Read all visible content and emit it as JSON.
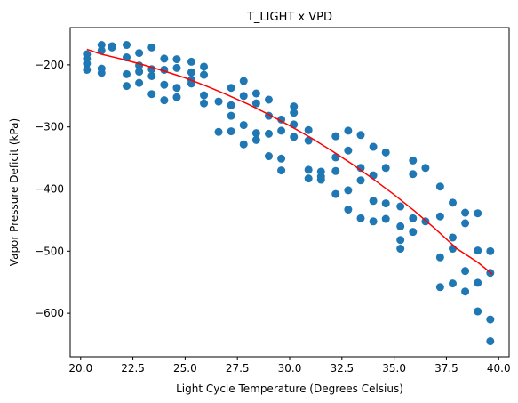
{
  "chart_data": {
    "type": "scatter",
    "title": "T_LIGHT x VPD",
    "xlabel": "Light Cycle Temperature (Degrees Celsius)",
    "ylabel": "Vapor Pressure Deficit (kPa)",
    "xlim": [
      19.5,
      40.5
    ],
    "ylim": [
      -670,
      -140
    ],
    "x_ticks": [
      {
        "value": 20.0,
        "label": "20.0"
      },
      {
        "value": 22.5,
        "label": "22.5"
      },
      {
        "value": 25.0,
        "label": "25.0"
      },
      {
        "value": 27.5,
        "label": "27.5"
      },
      {
        "value": 30.0,
        "label": "30.0"
      },
      {
        "value": 32.5,
        "label": "32.5"
      },
      {
        "value": 35.0,
        "label": "35.0"
      },
      {
        "value": 37.5,
        "label": "37.5"
      },
      {
        "value": 40.0,
        "label": "40.0"
      }
    ],
    "y_ticks": [
      {
        "value": -200,
        "label": "−200"
      },
      {
        "value": -300,
        "label": "−300"
      },
      {
        "value": -400,
        "label": "−400"
      },
      {
        "value": -500,
        "label": "−500"
      },
      {
        "value": -600,
        "label": "−600"
      }
    ],
    "grid": false,
    "point_color": "#1f77b4",
    "line_color": "#ff0000",
    "series": [
      {
        "type": "scatter",
        "points": [
          [
            20.3,
            -183
          ],
          [
            20.3,
            -190
          ],
          [
            20.3,
            -198
          ],
          [
            20.3,
            -208
          ],
          [
            21.0,
            -168
          ],
          [
            21.0,
            -177
          ],
          [
            21.0,
            -206
          ],
          [
            21.0,
            -213
          ],
          [
            21.5,
            -170
          ],
          [
            21.5,
            -172
          ],
          [
            22.2,
            -168
          ],
          [
            22.2,
            -188
          ],
          [
            22.2,
            -215
          ],
          [
            22.2,
            -234
          ],
          [
            22.8,
            -181
          ],
          [
            22.8,
            -201
          ],
          [
            22.8,
            -211
          ],
          [
            22.8,
            -229
          ],
          [
            23.4,
            -172
          ],
          [
            23.4,
            -207
          ],
          [
            23.4,
            -218
          ],
          [
            23.4,
            -247
          ],
          [
            24.0,
            -190
          ],
          [
            24.0,
            -208
          ],
          [
            24.0,
            -232
          ],
          [
            24.0,
            -257
          ],
          [
            24.6,
            -191
          ],
          [
            24.6,
            -205
          ],
          [
            24.6,
            -237
          ],
          [
            24.6,
            -252
          ],
          [
            25.3,
            -195
          ],
          [
            25.3,
            -212
          ],
          [
            25.3,
            -224
          ],
          [
            25.3,
            -230
          ],
          [
            25.9,
            -203
          ],
          [
            25.9,
            -216
          ],
          [
            25.9,
            -249
          ],
          [
            25.9,
            -262
          ],
          [
            26.6,
            -259
          ],
          [
            26.6,
            -308
          ],
          [
            27.2,
            -237
          ],
          [
            27.2,
            -265
          ],
          [
            27.2,
            -282
          ],
          [
            27.2,
            -307
          ],
          [
            27.8,
            -226
          ],
          [
            27.8,
            -250
          ],
          [
            27.8,
            -297
          ],
          [
            27.8,
            -328
          ],
          [
            28.4,
            -246
          ],
          [
            28.4,
            -262
          ],
          [
            28.4,
            -310
          ],
          [
            28.4,
            -321
          ],
          [
            29.0,
            -256
          ],
          [
            29.0,
            -282
          ],
          [
            29.0,
            -311
          ],
          [
            29.0,
            -347
          ],
          [
            29.6,
            -288
          ],
          [
            29.6,
            -306
          ],
          [
            29.6,
            -351
          ],
          [
            29.6,
            -370
          ],
          [
            30.2,
            -267
          ],
          [
            30.2,
            -277
          ],
          [
            30.2,
            -296
          ],
          [
            30.2,
            -316
          ],
          [
            30.9,
            -305
          ],
          [
            30.9,
            -322
          ],
          [
            30.9,
            -369
          ],
          [
            30.9,
            -383
          ],
          [
            31.5,
            -372
          ],
          [
            31.5,
            -380
          ],
          [
            31.5,
            -385
          ],
          [
            32.2,
            -315
          ],
          [
            32.2,
            -349
          ],
          [
            32.2,
            -371
          ],
          [
            32.2,
            -408
          ],
          [
            32.8,
            -306
          ],
          [
            32.8,
            -338
          ],
          [
            32.8,
            -402
          ],
          [
            32.8,
            -433
          ],
          [
            33.4,
            -313
          ],
          [
            33.4,
            -366
          ],
          [
            33.4,
            -386
          ],
          [
            33.4,
            -447
          ],
          [
            34.0,
            -332
          ],
          [
            34.0,
            -378
          ],
          [
            34.0,
            -419
          ],
          [
            34.0,
            -452
          ],
          [
            34.6,
            -341
          ],
          [
            34.6,
            -366
          ],
          [
            34.6,
            -423
          ],
          [
            34.6,
            -448
          ],
          [
            35.3,
            -428
          ],
          [
            35.3,
            -460
          ],
          [
            35.3,
            -482
          ],
          [
            35.3,
            -496
          ],
          [
            35.9,
            -354
          ],
          [
            35.9,
            -376
          ],
          [
            35.9,
            -447
          ],
          [
            35.9,
            -469
          ],
          [
            36.5,
            -366
          ],
          [
            36.5,
            -452
          ],
          [
            37.2,
            -396
          ],
          [
            37.2,
            -444
          ],
          [
            37.2,
            -510
          ],
          [
            37.2,
            -558
          ],
          [
            37.8,
            -422
          ],
          [
            37.8,
            -478
          ],
          [
            37.8,
            -496
          ],
          [
            37.8,
            -552
          ],
          [
            38.4,
            -438
          ],
          [
            38.4,
            -455
          ],
          [
            38.4,
            -532
          ],
          [
            38.4,
            -565
          ],
          [
            39.0,
            -439
          ],
          [
            39.0,
            -499
          ],
          [
            39.0,
            -551
          ],
          [
            39.0,
            -597
          ],
          [
            39.6,
            -500
          ],
          [
            39.6,
            -535
          ],
          [
            39.6,
            -610
          ],
          [
            39.6,
            -645
          ]
        ]
      },
      {
        "type": "line",
        "points": [
          [
            20.3,
            -175
          ],
          [
            21.0,
            -183
          ],
          [
            22.0,
            -191
          ],
          [
            23.0,
            -200
          ],
          [
            24.0,
            -210
          ],
          [
            25.0,
            -221
          ],
          [
            26.0,
            -234
          ],
          [
            27.0,
            -248
          ],
          [
            28.0,
            -263
          ],
          [
            29.0,
            -280
          ],
          [
            30.0,
            -298
          ],
          [
            31.0,
            -317
          ],
          [
            32.0,
            -338
          ],
          [
            33.0,
            -360
          ],
          [
            34.0,
            -384
          ],
          [
            35.0,
            -409
          ],
          [
            36.0,
            -436
          ],
          [
            37.0,
            -465
          ],
          [
            38.0,
            -496
          ],
          [
            39.0,
            -518
          ],
          [
            39.7,
            -537
          ]
        ]
      }
    ]
  }
}
